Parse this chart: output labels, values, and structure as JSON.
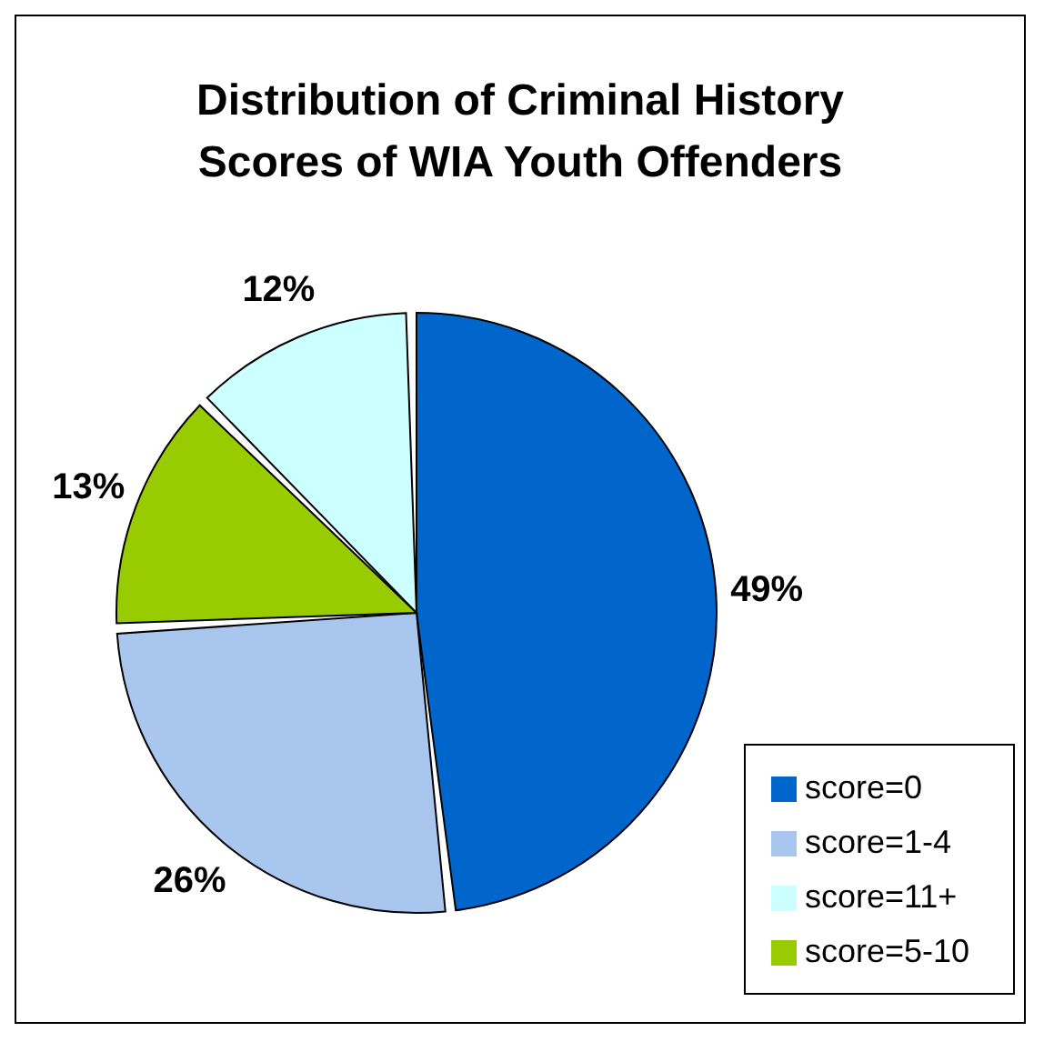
{
  "chart_data": {
    "type": "pie",
    "title": "Distribution of Criminal History Scores of WIA Youth Offenders",
    "categories": [
      "score=0",
      "score=1-4",
      "score=5-10",
      "score=11+"
    ],
    "values": [
      49,
      26,
      13,
      12
    ],
    "value_labels": [
      "49%",
      "26%",
      "13%",
      "12%"
    ],
    "colors": [
      "#0066cc",
      "#a9c6ee",
      "#99cc00",
      "#ccffff"
    ],
    "legend": "bottom right"
  }
}
